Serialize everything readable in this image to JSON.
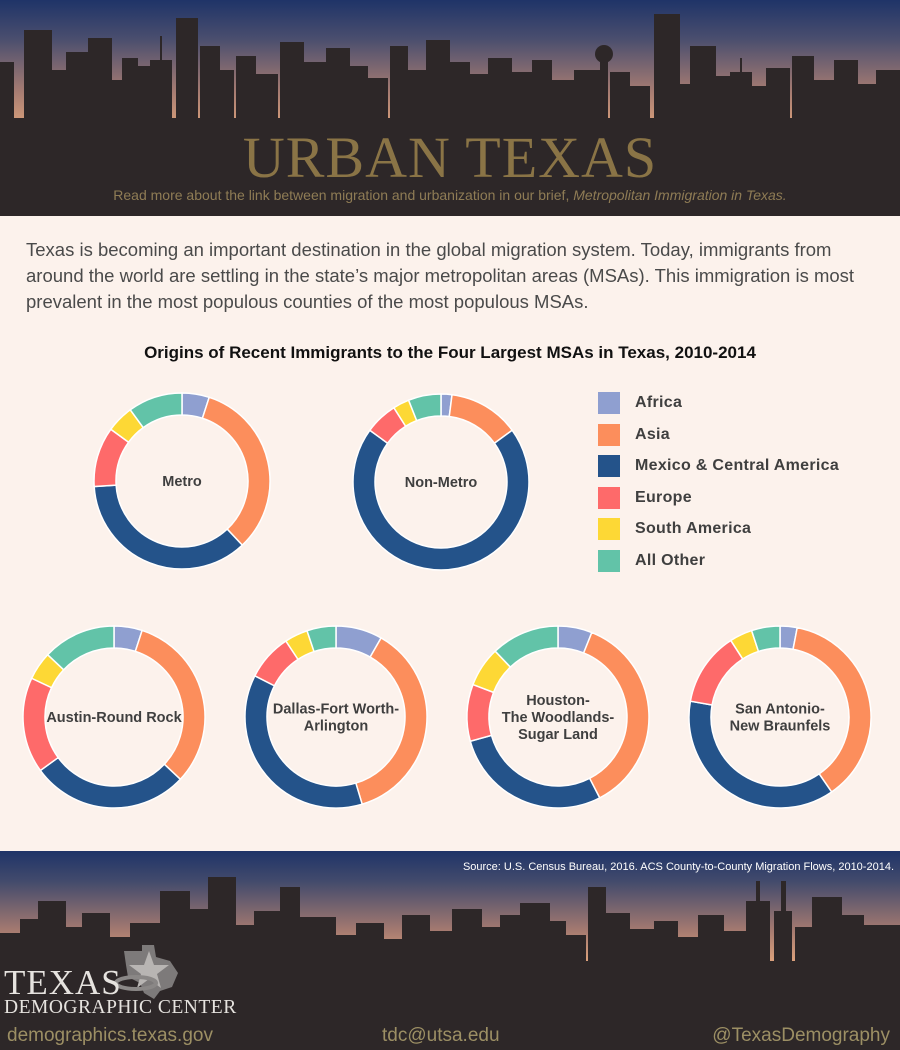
{
  "header": {
    "title": "URBAN TEXAS",
    "subtitle_text": "Read more about the link between migration and urbanization in our brief, ",
    "subtitle_italic": "Metropolitan Immigration in Texas."
  },
  "intro": "Texas is becoming an important destination in the global migration system. Today, immigrants from around the world are settling in the state’s major metropolitan areas (MSAs). This immigration is most prevalent in the most populous counties of the most populous MSAs.",
  "colors": {
    "Africa": "#8f9fd0",
    "Asia": "#fc8e5c",
    "Mexico & Central America": "#24538a",
    "Europe": "#fe6a6a",
    "South America": "#fdd835",
    "All Other": "#62c3a8"
  },
  "chart_data": {
    "type": "donut",
    "title": "Origins of Recent Immigrants to the Four Largest MSAs in Texas, 2010-2014",
    "categories": [
      "Africa",
      "Asia",
      "Mexico & Central America",
      "Europe",
      "South America",
      "All Other"
    ],
    "charts": [
      {
        "name": "Metro",
        "label_lines": [
          "Metro"
        ],
        "values": [
          5,
          33,
          36,
          11,
          5,
          10
        ]
      },
      {
        "name": "Non-Metro",
        "label_lines": [
          "Non-Metro"
        ],
        "values": [
          2,
          13,
          70,
          6,
          3,
          6
        ]
      },
      {
        "name": "Austin-Round Rock",
        "label_lines": [
          "Austin-Round Rock"
        ],
        "values": [
          5,
          32,
          28,
          17,
          5,
          13
        ]
      },
      {
        "name": "Dallas-Fort Worth-Arlington",
        "label_lines": [
          "Dallas-Fort Worth-",
          "Arlington"
        ],
        "values": [
          8,
          36,
          36,
          8,
          4,
          5
        ]
      },
      {
        "name": "Houston-The Woodlands-Sugar Land",
        "label_lines": [
          "Houston-",
          "The Woodlands-",
          "Sugar Land"
        ],
        "values": [
          6,
          36,
          28,
          10,
          7,
          12
        ]
      },
      {
        "name": "San Antonio-New Braunfels",
        "label_lines": [
          "San Antonio-",
          "New Braunfels"
        ],
        "values": [
          3,
          37,
          37,
          13,
          4,
          5
        ]
      }
    ],
    "legend": {
      "position": "right",
      "entries": [
        "Africa",
        "Asia",
        "Mexico & Central America",
        "Europe",
        "South America",
        "All Other"
      ]
    }
  },
  "footer": {
    "source": "Source: U.S. Census Bureau, 2016. ACS County-to-County Migration Flows, 2010-2014.",
    "logo_line1": "TEXAS",
    "logo_line2": "DEMOGRAPHIC CENTER",
    "website": "demographics.texas.gov",
    "email": "tdc@utsa.edu",
    "twitter": "@TexasDemography"
  }
}
